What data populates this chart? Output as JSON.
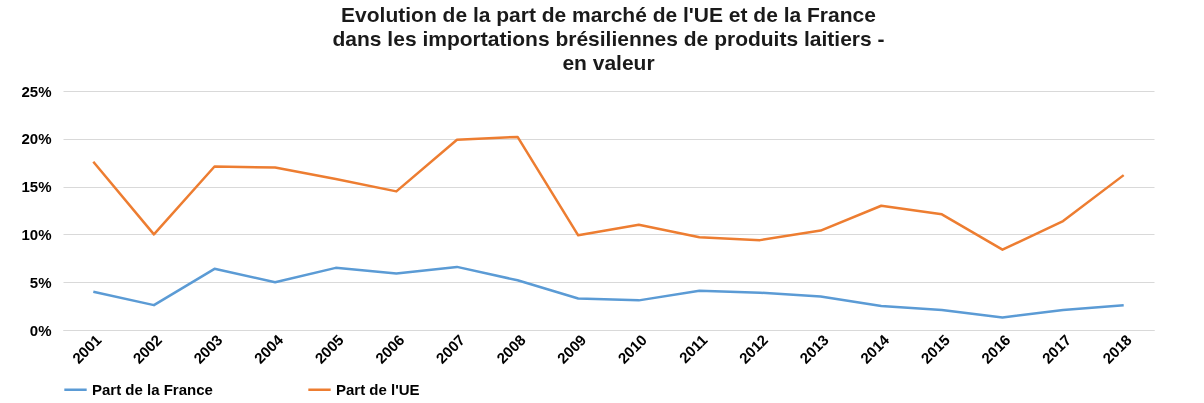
{
  "chart_data": {
    "type": "line",
    "title": "Evolution de la part de marché de l'UE et de la France\ndans les importations brésiliennes de produits laitiers -\nen valeur",
    "categories": [
      "2001",
      "2002",
      "2003",
      "2004",
      "2005",
      "2006",
      "2007",
      "2008",
      "2009",
      "2010",
      "2011",
      "2012",
      "2013",
      "2014",
      "2015",
      "2016",
      "2017",
      "2018"
    ],
    "series": [
      {
        "name": "Part de la France",
        "color": "#5b9bd5",
        "values": [
          4.0,
          2.6,
          6.4,
          5.0,
          6.5,
          5.9,
          6.6,
          5.2,
          3.3,
          3.1,
          4.1,
          3.9,
          3.5,
          2.5,
          2.1,
          1.3,
          2.1,
          2.6
        ]
      },
      {
        "name": "Part de l'UE",
        "color": "#ed7d31",
        "values": [
          17.6,
          10.0,
          17.1,
          17.0,
          15.8,
          14.5,
          19.9,
          20.2,
          9.9,
          11.0,
          9.7,
          9.4,
          10.4,
          13.0,
          12.1,
          8.4,
          11.4,
          16.2
        ]
      }
    ],
    "ylim": [
      0,
      25
    ],
    "yticks": [
      {
        "value": 0,
        "label": "0%"
      },
      {
        "value": 5,
        "label": "5%"
      },
      {
        "value": 10,
        "label": "10%"
      },
      {
        "value": 15,
        "label": "15%"
      },
      {
        "value": 20,
        "label": "20%"
      },
      {
        "value": 25,
        "label": "25%"
      }
    ],
    "grid": "y",
    "legend": "bottom",
    "marker": "none",
    "line_style": "solid"
  }
}
